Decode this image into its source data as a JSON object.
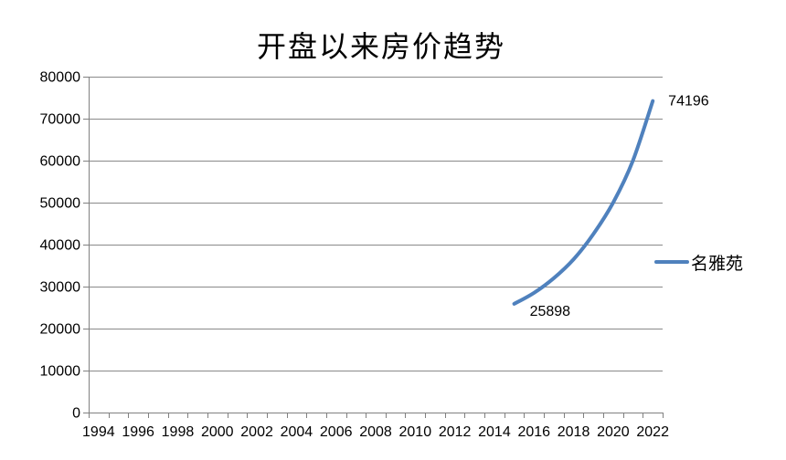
{
  "chart_data": {
    "type": "line",
    "title": "开盘以来房价趋势",
    "grid": true,
    "legend_position": "right",
    "x_axis": {
      "first_year": 1994,
      "last_year": 2022,
      "label_step": 2,
      "tick_labels": [
        "1994",
        "1996",
        "1998",
        "2000",
        "2002",
        "2004",
        "2006",
        "2008",
        "2010",
        "2012",
        "2014",
        "2016",
        "2018",
        "2020",
        "2022"
      ]
    },
    "y_axis": {
      "min": 0,
      "max": 80000,
      "step": 10000,
      "tick_labels": [
        "0",
        "10000",
        "20000",
        "30000",
        "40000",
        "50000",
        "60000",
        "70000",
        "80000"
      ]
    },
    "series": [
      {
        "name": "名雅苑",
        "color": "#4F81BD",
        "x": [
          2015,
          2016,
          2017,
          2018,
          2019,
          2020,
          2021,
          2022
        ],
        "values": [
          25898,
          28500,
          32000,
          36500,
          42500,
          50000,
          60000,
          74196
        ],
        "values_note": "only first (2015: 25898) and last (2022: 74196) points are labeled in the image; intermediate values estimated from the smooth curve against gridlines"
      }
    ],
    "data_labels": [
      {
        "x": 2015,
        "text": "25898"
      },
      {
        "x": 2022,
        "text": "74196"
      }
    ]
  },
  "colors": {
    "line": "#4F81BD",
    "grid": "#8a8a8a",
    "axis": "#808080",
    "text": "#000000",
    "background": "#ffffff"
  }
}
